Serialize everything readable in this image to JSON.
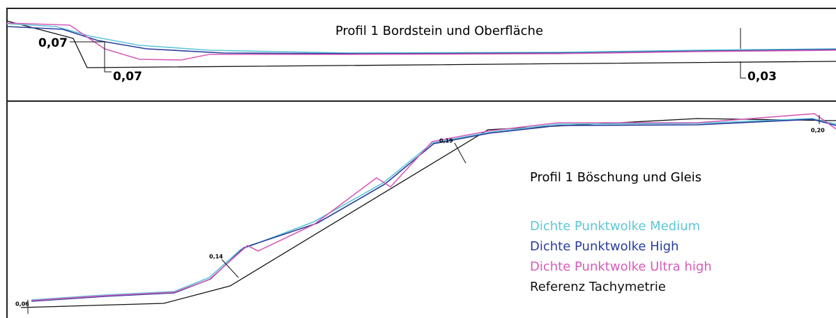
{
  "panels": [
    {
      "title": "Profil 1 Bordstein und Oberfläche",
      "annotations": [
        "0,07",
        "0,07",
        "0,03"
      ]
    },
    {
      "title": "Profil 1 Böschung und Gleis",
      "annotations": [
        "0,06",
        "0,14",
        "0,19",
        "0,20"
      ],
      "legend": [
        {
          "name": "Dichte Punktwolke Medium",
          "color": "#5cc6d6"
        },
        {
          "name": "Dichte Punktwolke High",
          "color": "#2a3b9c"
        },
        {
          "name": "Dichte Punktwolke Ultra high",
          "color": "#d65cb8"
        },
        {
          "name": "Referenz Tachymetrie",
          "color": "#111111"
        }
      ]
    }
  ]
}
